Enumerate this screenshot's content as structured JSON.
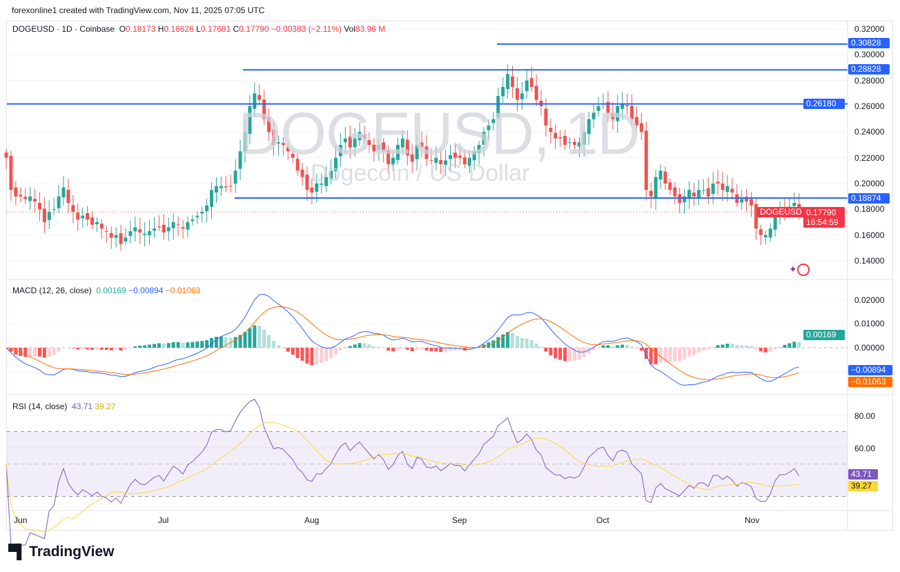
{
  "header": {
    "credit": "forexonline1 created with TradingView.com, Nov 11, 2025 07:05 UTC"
  },
  "legend": {
    "symbol": "DOGEUSD · 1D · Coinbase",
    "o_label": "O",
    "o": "0.18173",
    "h_label": "H",
    "h": "0.18626",
    "l_label": "L",
    "l": "0.17681",
    "c_label": "C",
    "c": "0.17790",
    "change": "−0.00383 (−2.11%)",
    "vol_label": "Vol",
    "vol": "83.96 M"
  },
  "watermark": {
    "title": "DOGEUSD, 1D",
    "subtitle": "Dogecoin / US Dollar"
  },
  "macd_legend": {
    "label": "MACD (12, 26, close)",
    "hist": "0.00169",
    "macd": "−0.00894",
    "signal": "−0.01063"
  },
  "rsi_legend": {
    "label": "RSI (14, close)",
    "rsi": "43.71",
    "ma": "39.27"
  },
  "badges": {
    "symbol": "DOGEUSD",
    "price": "0.17790",
    "countdown": "16:54:59",
    "level1": "0.30828",
    "level2": "0.28828",
    "level3": "0.26180",
    "level4": "0.18874",
    "hist": "0.00169",
    "macd": "−0.00894",
    "signal": "−0.01063",
    "rsi": "43.71",
    "rsi_ma": "39.27"
  },
  "colors": {
    "up": "#26a69a",
    "down": "#ef5350",
    "level": "#2962ff",
    "macd": "#2962ff",
    "signal": "#ff6d00",
    "rsi": "#7e57c2",
    "rsi_ma": "#fdd835"
  },
  "branding": {
    "logo": "TradingView"
  },
  "chart_data": {
    "type": "candlestick",
    "interval": "1D",
    "start_date": "2025-05-29",
    "price_ticks": [
      "0.32000",
      "0.30000",
      "0.28000",
      "0.26000",
      "0.24000",
      "0.22000",
      "0.20000",
      "0.18000",
      "0.16000",
      "0.14000"
    ],
    "ylim": [
      0.13,
      0.325
    ],
    "x_ticks": [
      "Jun",
      "Jul",
      "Aug",
      "Sep",
      "Oct",
      "Nov"
    ],
    "horizontal_levels": [
      0.30828,
      0.28828,
      0.2618,
      0.18874
    ],
    "closes": [
      0.22,
      0.195,
      0.19,
      0.19,
      0.188,
      0.19,
      0.186,
      0.18,
      0.17,
      0.178,
      0.18,
      0.19,
      0.197,
      0.185,
      0.178,
      0.172,
      0.175,
      0.172,
      0.168,
      0.17,
      0.165,
      0.163,
      0.158,
      0.16,
      0.153,
      0.158,
      0.163,
      0.166,
      0.162,
      0.161,
      0.163,
      0.165,
      0.166,
      0.162,
      0.166,
      0.17,
      0.168,
      0.165,
      0.17,
      0.172,
      0.175,
      0.178,
      0.183,
      0.195,
      0.198,
      0.198,
      0.197,
      0.198,
      0.21,
      0.225,
      0.24,
      0.26,
      0.27,
      0.265,
      0.25,
      0.24,
      0.23,
      0.232,
      0.23,
      0.225,
      0.22,
      0.21,
      0.205,
      0.195,
      0.193,
      0.2,
      0.2,
      0.205,
      0.21,
      0.22,
      0.23,
      0.235,
      0.228,
      0.235,
      0.24,
      0.235,
      0.23,
      0.225,
      0.23,
      0.225,
      0.215,
      0.22,
      0.23,
      0.235,
      0.222,
      0.217,
      0.23,
      0.228,
      0.219,
      0.218,
      0.22,
      0.215,
      0.218,
      0.222,
      0.22,
      0.22,
      0.215,
      0.22,
      0.225,
      0.23,
      0.24,
      0.245,
      0.25,
      0.268,
      0.275,
      0.285,
      0.275,
      0.265,
      0.27,
      0.28,
      0.275,
      0.265,
      0.26,
      0.245,
      0.24,
      0.235,
      0.235,
      0.23,
      0.232,
      0.23,
      0.232,
      0.24,
      0.25,
      0.255,
      0.26,
      0.262,
      0.255,
      0.25,
      0.26,
      0.262,
      0.26,
      0.25,
      0.245,
      0.24,
      0.195,
      0.19,
      0.205,
      0.21,
      0.2,
      0.195,
      0.19,
      0.185,
      0.19,
      0.195,
      0.19,
      0.195,
      0.195,
      0.19,
      0.2,
      0.2,
      0.195,
      0.198,
      0.193,
      0.185,
      0.188,
      0.186,
      0.183,
      0.165,
      0.16,
      0.16,
      0.165,
      0.175,
      0.18,
      0.18,
      0.182,
      0.185,
      0.1779
    ],
    "macd": {
      "params": [
        12,
        26,
        9
      ],
      "ticks": [
        "0.02000",
        "0.01000",
        "0.00000"
      ],
      "ylim": [
        -0.016,
        0.025
      ]
    },
    "rsi": {
      "length": 14,
      "ticks": [
        "80.00",
        "60.00"
      ],
      "bands": [
        70,
        50,
        30
      ]
    }
  }
}
